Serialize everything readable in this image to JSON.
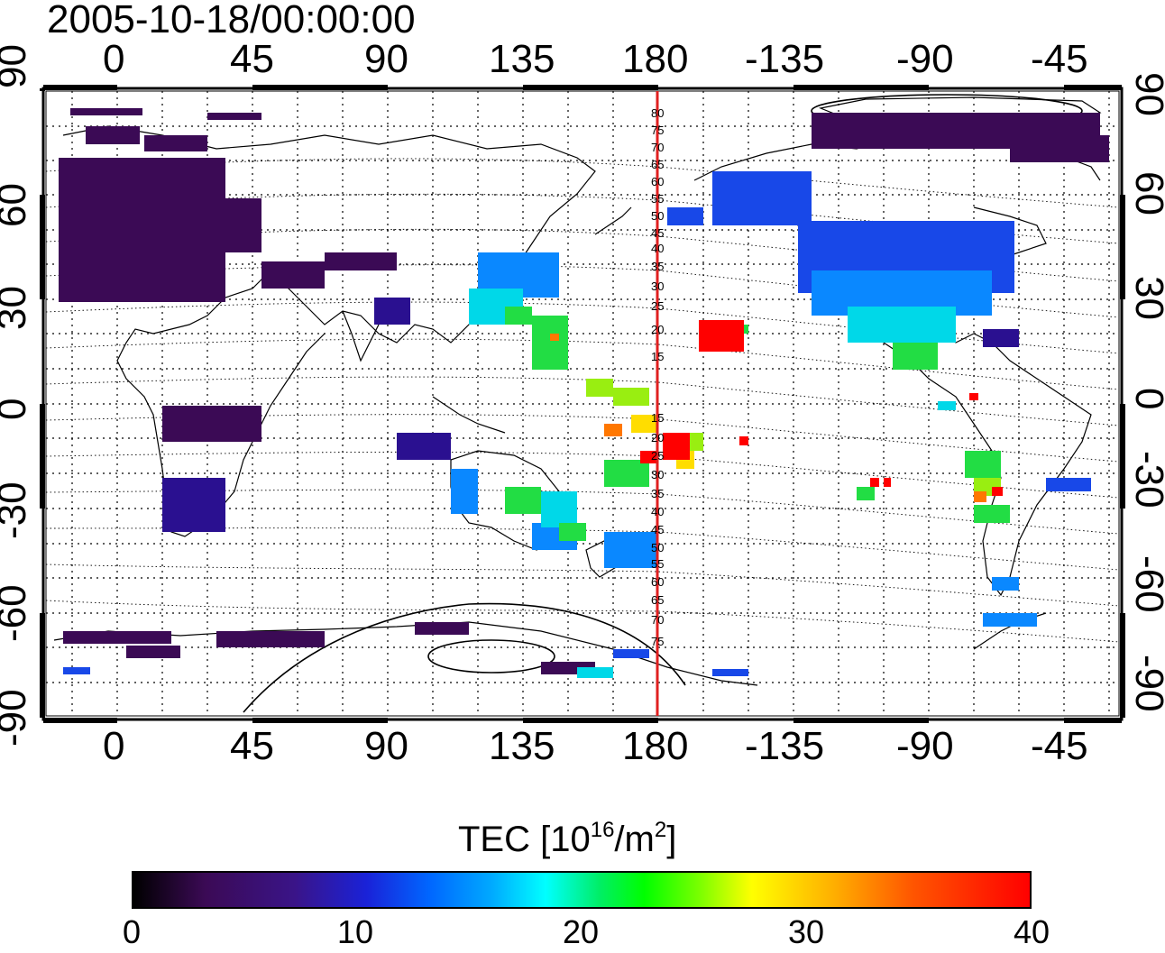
{
  "timestamp": "2005-10-18/00:00:00",
  "map": {
    "x_tick_labels": [
      "0",
      "45",
      "90",
      "135",
      "180",
      "-135",
      "-90",
      "-45"
    ],
    "y_tick_labels": [
      "90",
      "60",
      "30",
      "0",
      "-30",
      "-60",
      "-90"
    ],
    "meridian_labels_upper": [
      "80",
      "75",
      "70",
      "65",
      "60",
      "55",
      "50",
      "45",
      "40",
      "35",
      "30",
      "25",
      "20",
      "15"
    ],
    "meridian_labels_lower": [
      "15",
      "20",
      "25",
      "30",
      "35",
      "40",
      "45",
      "50",
      "55",
      "60",
      "65",
      "70",
      "75"
    ],
    "highlight_meridian_lon": 180,
    "highlight_color": "#e02020"
  },
  "colorbar": {
    "title_prefix": "TEC  [10",
    "title_sup1": "16",
    "title_mid": "/m",
    "title_sup2": "2",
    "title_suffix": "]",
    "tick_labels": [
      "0",
      "10",
      "20",
      "30",
      "40"
    ],
    "range": [
      0,
      40
    ],
    "colors": [
      "#000000",
      "#3a1488",
      "#0066ff",
      "#00ffff",
      "#00ff00",
      "#ffff00",
      "#ff5500",
      "#ff0000"
    ]
  }
}
